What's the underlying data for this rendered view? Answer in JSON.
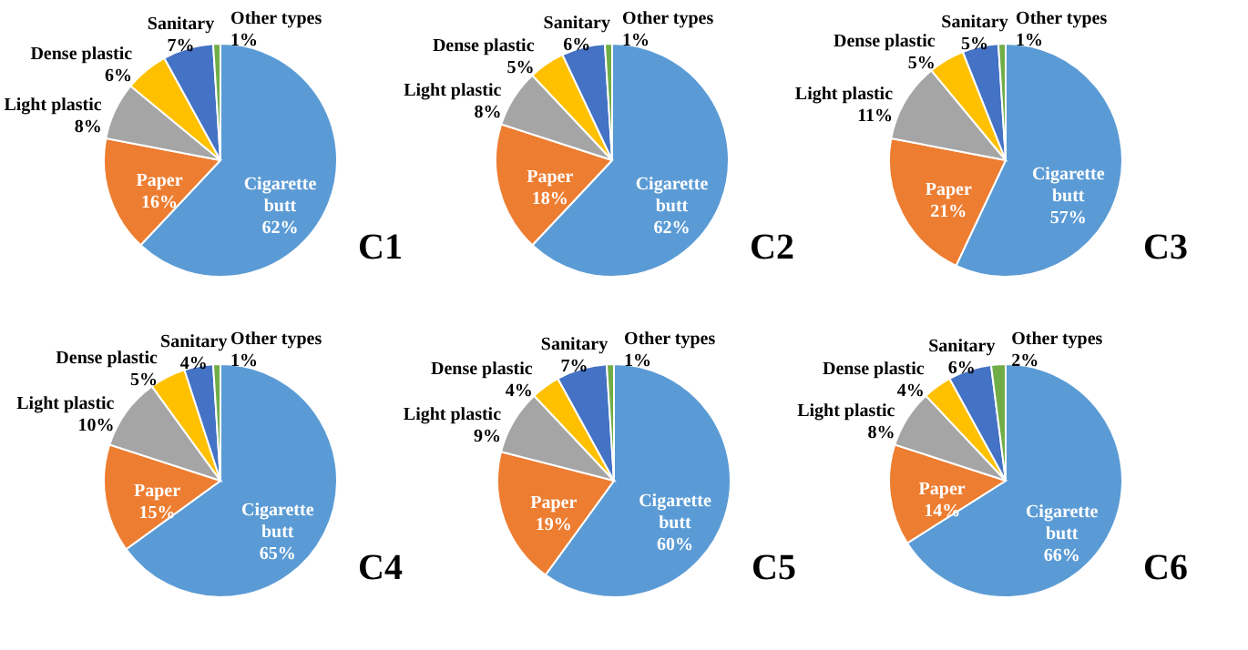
{
  "chart_data": [
    {
      "type": "pie",
      "title": "C1",
      "categories": [
        "Cigarette butt",
        "Paper",
        "Light plastic",
        "Dense plastic",
        "Sanitary",
        "Other types"
      ],
      "values": [
        62,
        16,
        8,
        6,
        7,
        1
      ],
      "value_labels": [
        "62%",
        "16%",
        "8%",
        "6%",
        "7%",
        "1%"
      ],
      "colors": [
        "#5b9bd5",
        "#ed7d31",
        "#a5a5a5",
        "#ffc000",
        "#4472c4",
        "#70ad47"
      ]
    },
    {
      "type": "pie",
      "title": "C2",
      "categories": [
        "Cigarette butt",
        "Paper",
        "Light plastic",
        "Dense plastic",
        "Sanitary",
        "Other types"
      ],
      "values": [
        62,
        18,
        8,
        5,
        6,
        1
      ],
      "value_labels": [
        "62%",
        "18%",
        "8%",
        "5%",
        "6%",
        "1%"
      ],
      "colors": [
        "#5b9bd5",
        "#ed7d31",
        "#a5a5a5",
        "#ffc000",
        "#4472c4",
        "#70ad47"
      ]
    },
    {
      "type": "pie",
      "title": "C3",
      "categories": [
        "Cigarette butt",
        "Paper",
        "Light plastic",
        "Dense plastic",
        "Sanitary",
        "Other types"
      ],
      "values": [
        57,
        21,
        11,
        5,
        5,
        1
      ],
      "value_labels": [
        "57%",
        "21%",
        "11%",
        "5%",
        "5%",
        "1%"
      ],
      "colors": [
        "#5b9bd5",
        "#ed7d31",
        "#a5a5a5",
        "#ffc000",
        "#4472c4",
        "#70ad47"
      ]
    },
    {
      "type": "pie",
      "title": "C4",
      "categories": [
        "Cigarette butt",
        "Paper",
        "Light plastic",
        "Dense plastic",
        "Sanitary",
        "Other types"
      ],
      "values": [
        65,
        15,
        10,
        5,
        4,
        1
      ],
      "value_labels": [
        "65%",
        "15%",
        "10%",
        "5%",
        "4%",
        "1%"
      ],
      "colors": [
        "#5b9bd5",
        "#ed7d31",
        "#a5a5a5",
        "#ffc000",
        "#4472c4",
        "#70ad47"
      ]
    },
    {
      "type": "pie",
      "title": "C5",
      "categories": [
        "Cigarette butt",
        "Paper",
        "Light plastic",
        "Dense plastic",
        "Sanitary",
        "Other types"
      ],
      "values": [
        60,
        19,
        9,
        4,
        7,
        1
      ],
      "value_labels": [
        "60%",
        "19%",
        "9%",
        "4%",
        "7%",
        "1%"
      ],
      "colors": [
        "#5b9bd5",
        "#ed7d31",
        "#a5a5a5",
        "#ffc000",
        "#4472c4",
        "#70ad47"
      ]
    },
    {
      "type": "pie",
      "title": "C6",
      "categories": [
        "Cigarette butt",
        "Paper",
        "Light plastic",
        "Dense plastic",
        "Sanitary",
        "Other types"
      ],
      "values": [
        66,
        14,
        8,
        4,
        6,
        2
      ],
      "value_labels": [
        "66%",
        "14%",
        "8%",
        "4%",
        "6%",
        "2%"
      ],
      "colors": [
        "#5b9bd5",
        "#ed7d31",
        "#a5a5a5",
        "#ffc000",
        "#4472c4",
        "#70ad47"
      ]
    }
  ]
}
